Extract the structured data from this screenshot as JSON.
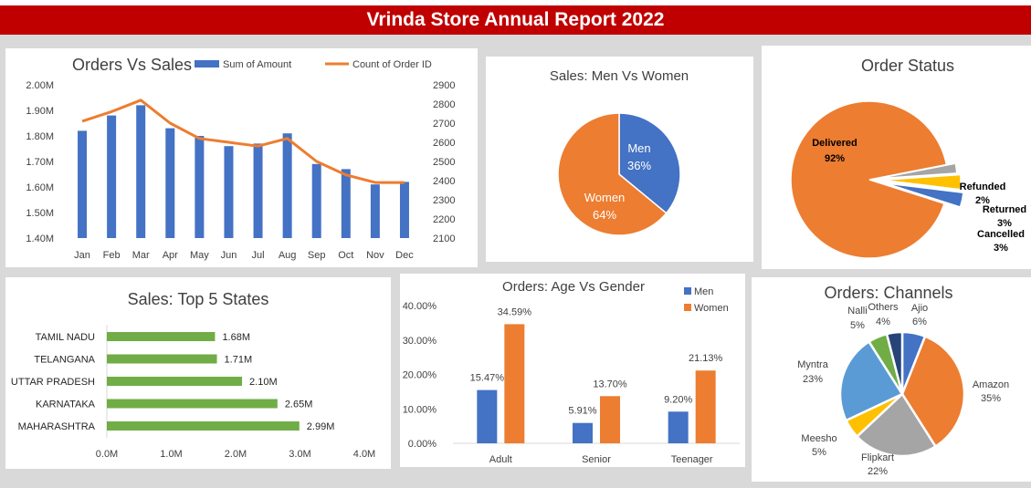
{
  "banner": {
    "title": "Vrinda Store Annual Report 2022"
  },
  "colors": {
    "banner": "#c00000",
    "blue": "#4472c4",
    "orange": "#ed7d31",
    "gray": "#a5a5a5",
    "yellow": "#ffc000",
    "green": "#70ad47",
    "lightblue": "#5b9bd5",
    "navy": "#264478"
  },
  "chart_data": [
    {
      "id": "orders-vs-sales",
      "type": "bar",
      "title": "Orders Vs Sales",
      "categories": [
        "Jan",
        "Feb",
        "Mar",
        "Apr",
        "May",
        "Jun",
        "Jul",
        "Aug",
        "Sep",
        "Oct",
        "Nov",
        "Dec"
      ],
      "series": [
        {
          "name": "Sum of Amount",
          "type": "bar",
          "axis": "left",
          "values": [
            1.82,
            1.88,
            1.92,
            1.83,
            1.8,
            1.76,
            1.77,
            1.81,
            1.69,
            1.67,
            1.61,
            1.62
          ]
        },
        {
          "name": "Count of Order ID",
          "type": "line",
          "axis": "right",
          "values": [
            2710,
            2760,
            2820,
            2700,
            2620,
            2600,
            2580,
            2620,
            2500,
            2430,
            2390,
            2390
          ]
        }
      ],
      "ylim": [
        1.4,
        2.0
      ],
      "yticks": [
        "2.00M",
        "1.90M",
        "1.80M",
        "1.70M",
        "1.60M",
        "1.50M",
        "1.40M"
      ],
      "y2lim": [
        2100,
        2900
      ],
      "y2ticks": [
        "2900",
        "2800",
        "2700",
        "2600",
        "2500",
        "2400",
        "2300",
        "2200",
        "2100"
      ],
      "legend": "top"
    },
    {
      "id": "sales-men-women",
      "type": "pie",
      "title": "Sales: Men Vs Women",
      "slices": [
        {
          "label": "Men",
          "pct": "36%",
          "value": 36
        },
        {
          "label": "Women",
          "pct": "64%",
          "value": 64
        }
      ]
    },
    {
      "id": "order-status",
      "type": "pie",
      "title": "Order Status",
      "slices": [
        {
          "label": "Delivered",
          "pct": "92%",
          "value": 92
        },
        {
          "label": "Refunded",
          "pct": "2%",
          "value": 2
        },
        {
          "label": "Returned",
          "pct": "3%",
          "value": 3
        },
        {
          "label": "Cancelled",
          "pct": "3%",
          "value": 3
        }
      ]
    },
    {
      "id": "top-5-states",
      "type": "bar",
      "orientation": "horizontal",
      "title": "Sales: Top 5 States",
      "categories": [
        "TAMIL NADU",
        "TELANGANA",
        "UTTAR PRADESH",
        "KARNATAKA",
        "MAHARASHTRA"
      ],
      "values": [
        1.68,
        1.71,
        2.1,
        2.65,
        2.99
      ],
      "labels": [
        "1.68M",
        "1.71M",
        "2.10M",
        "2.65M",
        "2.99M"
      ],
      "xlim": [
        0,
        4
      ],
      "xticks": [
        "0.0M",
        "1.0M",
        "2.0M",
        "3.0M",
        "4.0M"
      ]
    },
    {
      "id": "age-vs-gender",
      "type": "bar",
      "title": "Orders: Age Vs Gender",
      "categories": [
        "Adult",
        "Senior",
        "Teenager"
      ],
      "series": [
        {
          "name": "Men",
          "values": [
            15.47,
            5.91,
            9.2
          ],
          "labels": [
            "15.47%",
            "5.91%",
            "9.20%"
          ]
        },
        {
          "name": "Women",
          "values": [
            34.59,
            13.7,
            21.13
          ],
          "labels": [
            "34.59%",
            "13.70%",
            "21.13%"
          ]
        }
      ],
      "ylim": [
        0,
        40
      ],
      "yticks": [
        "40.00%",
        "30.00%",
        "20.00%",
        "10.00%",
        "0.00%"
      ],
      "legend": "top-right"
    },
    {
      "id": "orders-channels",
      "type": "pie",
      "title": "Orders: Channels",
      "slices": [
        {
          "label": "Ajio",
          "pct": "6%",
          "value": 6
        },
        {
          "label": "Amazon",
          "pct": "35%",
          "value": 35
        },
        {
          "label": "Flipkart",
          "pct": "22%",
          "value": 22
        },
        {
          "label": "Meesho",
          "pct": "5%",
          "value": 5
        },
        {
          "label": "Myntra",
          "pct": "23%",
          "value": 23
        },
        {
          "label": "Nalli",
          "pct": "5%",
          "value": 5
        },
        {
          "label": "Others",
          "pct": "4%",
          "value": 4
        }
      ]
    }
  ]
}
